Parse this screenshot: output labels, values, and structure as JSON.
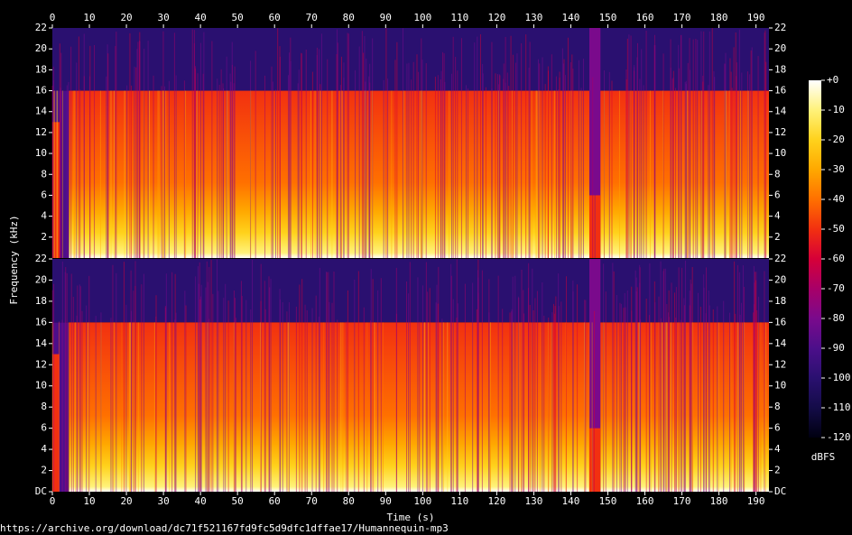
{
  "chart_data": {
    "type": "spectrogram",
    "xlabel": "Time (s)",
    "ylabel": "Frequency (kHz)",
    "xlim": [
      0,
      193.5
    ],
    "xticks": [
      0,
      10,
      20,
      30,
      40,
      50,
      60,
      70,
      80,
      90,
      100,
      110,
      120,
      130,
      140,
      150,
      160,
      170,
      180,
      190
    ],
    "channels": [
      {
        "ylim": [
          0,
          22
        ],
        "yticks": [
          2,
          4,
          6,
          8,
          10,
          12,
          14,
          16,
          18,
          20,
          22
        ]
      },
      {
        "ylim": [
          0,
          22
        ],
        "yticks": [
          {
            "value": 0,
            "label": "DC"
          },
          2,
          4,
          6,
          8,
          10,
          12,
          14,
          16,
          18,
          20,
          22
        ]
      }
    ],
    "colorbar": {
      "label": "dBFS",
      "lim": [
        -120,
        0
      ],
      "ticks": [
        {
          "value": 0,
          "label": "+0"
        },
        -10,
        -20,
        -30,
        -40,
        -50,
        -60,
        -70,
        -80,
        -90,
        -100,
        -110,
        -120
      ],
      "colors": [
        "#ffffff",
        "#fff27a",
        "#ffd21c",
        "#ffa800",
        "#ff7000",
        "#f23010",
        "#d60038",
        "#a80068",
        "#7a0a8c",
        "#4c0f8a",
        "#2a1070",
        "#140c48",
        "#000010"
      ]
    }
  },
  "source": "https://archive.org/download/dc71f521167fd9fc5d9dfc1dffae17/Humannequin-mp3"
}
